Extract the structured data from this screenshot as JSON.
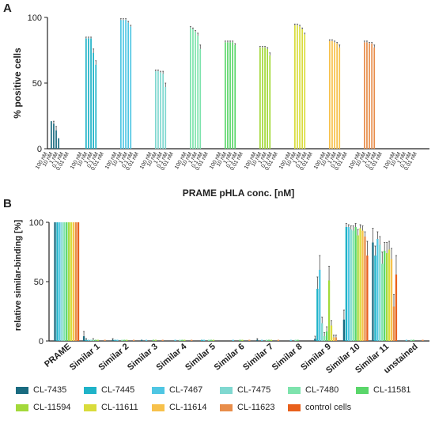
{
  "panels": {
    "a": "A",
    "b": "B"
  },
  "legend": [
    {
      "name": "CL-7435",
      "color": "#1a6b80"
    },
    {
      "name": "CL-7445",
      "color": "#1fb3c8"
    },
    {
      "name": "CL-7467",
      "color": "#4fc6e3"
    },
    {
      "name": "CL-7475",
      "color": "#7fd8d0"
    },
    {
      "name": "CL-7480",
      "color": "#7ee3ad"
    },
    {
      "name": "CL-11581",
      "color": "#5ad66a"
    },
    {
      "name": "CL-11594",
      "color": "#a3d93a"
    },
    {
      "name": "CL-11611",
      "color": "#d9dc3b"
    },
    {
      "name": "CL-11614",
      "color": "#f7c14b"
    },
    {
      "name": "CL-11623",
      "color": "#e88d4a"
    },
    {
      "name": "control cells",
      "color": "#e8601c"
    }
  ],
  "chart_data": [
    {
      "type": "bar",
      "panel": "A",
      "ylabel": "% positive cells",
      "xlabel": "PRAME pHLA conc. [nM]",
      "ylim": [
        0,
        100
      ],
      "yticks": [
        0,
        50,
        100
      ],
      "concentrations": [
        "100 nM",
        "10 nM",
        "1 nM",
        "0.1 nM",
        "0.01 nM"
      ],
      "series": [
        {
          "name": "CL-7435",
          "values": [
            21,
            19,
            14,
            8,
            0
          ],
          "err": [
            0,
            2,
            3,
            0,
            0
          ]
        },
        {
          "name": "CL-7445",
          "values": [
            84,
            84,
            84,
            73,
            64
          ],
          "err": [
            1,
            1,
            1,
            3,
            3
          ]
        },
        {
          "name": "CL-7467",
          "values": [
            98,
            98,
            98,
            96,
            93
          ],
          "err": [
            1,
            1,
            1,
            1,
            1
          ]
        },
        {
          "name": "CL-7475",
          "values": [
            59,
            59,
            58,
            57,
            47
          ],
          "err": [
            1,
            1,
            1,
            2,
            3
          ]
        },
        {
          "name": "CL-7480",
          "values": [
            92,
            91,
            89,
            86,
            76
          ],
          "err": [
            1,
            1,
            1,
            2,
            3
          ]
        },
        {
          "name": "CL-11581",
          "values": [
            81,
            81,
            81,
            81,
            79
          ],
          "err": [
            1,
            1,
            1,
            1,
            1
          ]
        },
        {
          "name": "CL-11594",
          "values": [
            77,
            77,
            77,
            76,
            71
          ],
          "err": [
            1,
            1,
            1,
            1,
            2
          ]
        },
        {
          "name": "CL-11611",
          "values": [
            94,
            94,
            93,
            91,
            87
          ],
          "err": [
            1,
            1,
            1,
            1,
            1
          ]
        },
        {
          "name": "CL-11614",
          "values": [
            82,
            82,
            81,
            80,
            77
          ],
          "err": [
            1,
            1,
            1,
            1,
            2
          ]
        },
        {
          "name": "CL-11623",
          "values": [
            81,
            81,
            80,
            80,
            77
          ],
          "err": [
            1,
            1,
            1,
            1,
            2
          ]
        },
        {
          "name": "control cells",
          "values": [
            0,
            0,
            0,
            0,
            0
          ],
          "err": [
            0,
            0,
            0,
            0,
            0
          ]
        }
      ]
    },
    {
      "type": "bar",
      "panel": "B",
      "ylabel": "relative similar-binding [%]",
      "ylim": [
        0,
        100
      ],
      "yticks": [
        0,
        50,
        100
      ],
      "categories": [
        "PRAME",
        "Similar 1",
        "Similar 2",
        "Similar 3",
        "Similar 4",
        "Similar 5",
        "Similar 6",
        "Similar 7",
        "Similar 8",
        "Similar 9",
        "Similar 10",
        "Similar 11",
        "unstained"
      ],
      "series": [
        {
          "name": "CL-7435",
          "values": [
            100,
            4,
            1,
            1,
            0,
            0,
            0,
            1,
            0,
            2,
            18,
            83,
            0
          ],
          "err": [
            0,
            4,
            1,
            0,
            0,
            0,
            0,
            1,
            0,
            2,
            8,
            12,
            0
          ]
        },
        {
          "name": "CL-7445",
          "values": [
            100,
            1,
            1,
            0,
            0,
            1,
            0,
            0,
            0,
            44,
            96,
            72,
            0
          ],
          "err": [
            0,
            1,
            0,
            0,
            0,
            0,
            0,
            0,
            0,
            10,
            3,
            8,
            0
          ]
        },
        {
          "name": "CL-7467",
          "values": [
            100,
            1,
            1,
            1,
            1,
            1,
            1,
            1,
            1,
            60,
            96,
            86,
            1
          ],
          "err": [
            0,
            0,
            0,
            0,
            0,
            0,
            0,
            0,
            0,
            12,
            2,
            6,
            0
          ]
        },
        {
          "name": "CL-7475",
          "values": [
            100,
            1,
            0,
            0,
            0,
            0,
            0,
            0,
            0,
            15,
            94,
            81,
            0
          ],
          "err": [
            0,
            0,
            0,
            0,
            0,
            0,
            0,
            0,
            0,
            5,
            3,
            7,
            0
          ]
        },
        {
          "name": "CL-7480",
          "values": [
            100,
            1,
            1,
            0,
            1,
            1,
            0,
            1,
            1,
            4,
            93,
            65,
            1
          ],
          "err": [
            0,
            1,
            0,
            0,
            0,
            0,
            0,
            0,
            0,
            3,
            4,
            10,
            0
          ]
        },
        {
          "name": "CL-11581",
          "values": [
            100,
            1,
            1,
            1,
            1,
            1,
            1,
            1,
            1,
            8,
            96,
            76,
            1
          ],
          "err": [
            0,
            0,
            0,
            0,
            0,
            0,
            0,
            0,
            0,
            4,
            3,
            7,
            0
          ]
        },
        {
          "name": "CL-11594",
          "values": [
            100,
            1,
            1,
            1,
            1,
            1,
            1,
            1,
            0,
            51,
            89,
            74,
            0
          ],
          "err": [
            0,
            0,
            0,
            0,
            0,
            0,
            0,
            0,
            0,
            12,
            5,
            9,
            0
          ]
        },
        {
          "name": "CL-11611",
          "values": [
            100,
            0,
            0,
            0,
            0,
            0,
            0,
            0,
            0,
            13,
            95,
            77,
            0
          ],
          "err": [
            0,
            0,
            0,
            0,
            0,
            0,
            0,
            0,
            0,
            4,
            3,
            7,
            0
          ]
        },
        {
          "name": "CL-11614",
          "values": [
            100,
            0,
            0,
            0,
            0,
            0,
            0,
            0,
            0,
            3,
            93,
            69,
            0
          ],
          "err": [
            0,
            0,
            0,
            0,
            0,
            0,
            0,
            0,
            0,
            2,
            4,
            9,
            0
          ]
        },
        {
          "name": "CL-11623",
          "values": [
            100,
            1,
            1,
            1,
            1,
            0,
            1,
            1,
            0,
            3,
            88,
            29,
            1
          ],
          "err": [
            0,
            0,
            0,
            0,
            0,
            0,
            0,
            0,
            0,
            2,
            4,
            10,
            0
          ]
        },
        {
          "name": "control cells",
          "values": [
            100,
            0,
            0,
            0,
            0,
            0,
            0,
            0,
            0,
            0,
            72,
            56,
            0
          ],
          "err": [
            0,
            0,
            0,
            0,
            0,
            0,
            0,
            0,
            0,
            0,
            12,
            16,
            0
          ]
        }
      ]
    }
  ]
}
